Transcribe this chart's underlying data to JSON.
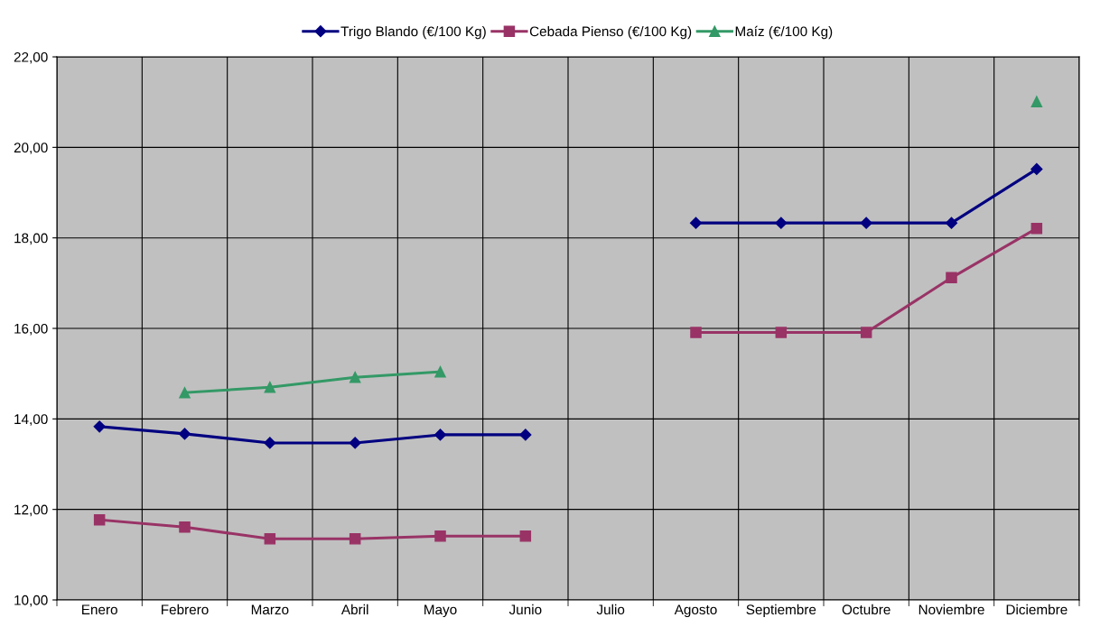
{
  "chart_data": {
    "type": "line",
    "categories": [
      "Enero",
      "Febrero",
      "Marzo",
      "Abril",
      "Mayo",
      "Junio",
      "Julio",
      "Agosto",
      "Septiembre",
      "Octubre",
      "Noviembre",
      "Diciembre"
    ],
    "series": [
      {
        "name": "Trigo Blando (€/100 Kg)",
        "color": "#000080",
        "marker": "diamond",
        "values": [
          13.83,
          13.67,
          13.47,
          13.47,
          13.65,
          13.65,
          null,
          18.33,
          18.33,
          18.33,
          18.33,
          19.52
        ]
      },
      {
        "name": "Cebada Pienso (€/100 Kg)",
        "color": "#993366",
        "marker": "square",
        "values": [
          11.77,
          11.61,
          11.35,
          11.35,
          11.41,
          11.41,
          null,
          15.91,
          15.91,
          15.91,
          17.12,
          18.21
        ]
      },
      {
        "name": "Maíz (€/100 Kg)",
        "color": "#339966",
        "marker": "triangle",
        "values": [
          null,
          14.58,
          14.7,
          14.92,
          15.04,
          null,
          null,
          null,
          null,
          null,
          null,
          21.01
        ]
      }
    ],
    "ylim": [
      10,
      22
    ],
    "yticks": [
      {
        "value": 10,
        "label": "10,00"
      },
      {
        "value": 12,
        "label": "12,00"
      },
      {
        "value": 14,
        "label": "14,00"
      },
      {
        "value": 16,
        "label": "16,00"
      },
      {
        "value": 18,
        "label": "18,00"
      },
      {
        "value": 20,
        "label": "20,00"
      },
      {
        "value": 22,
        "label": "22,00"
      }
    ],
    "grid": true,
    "legend": "top",
    "line_style": "solid"
  }
}
